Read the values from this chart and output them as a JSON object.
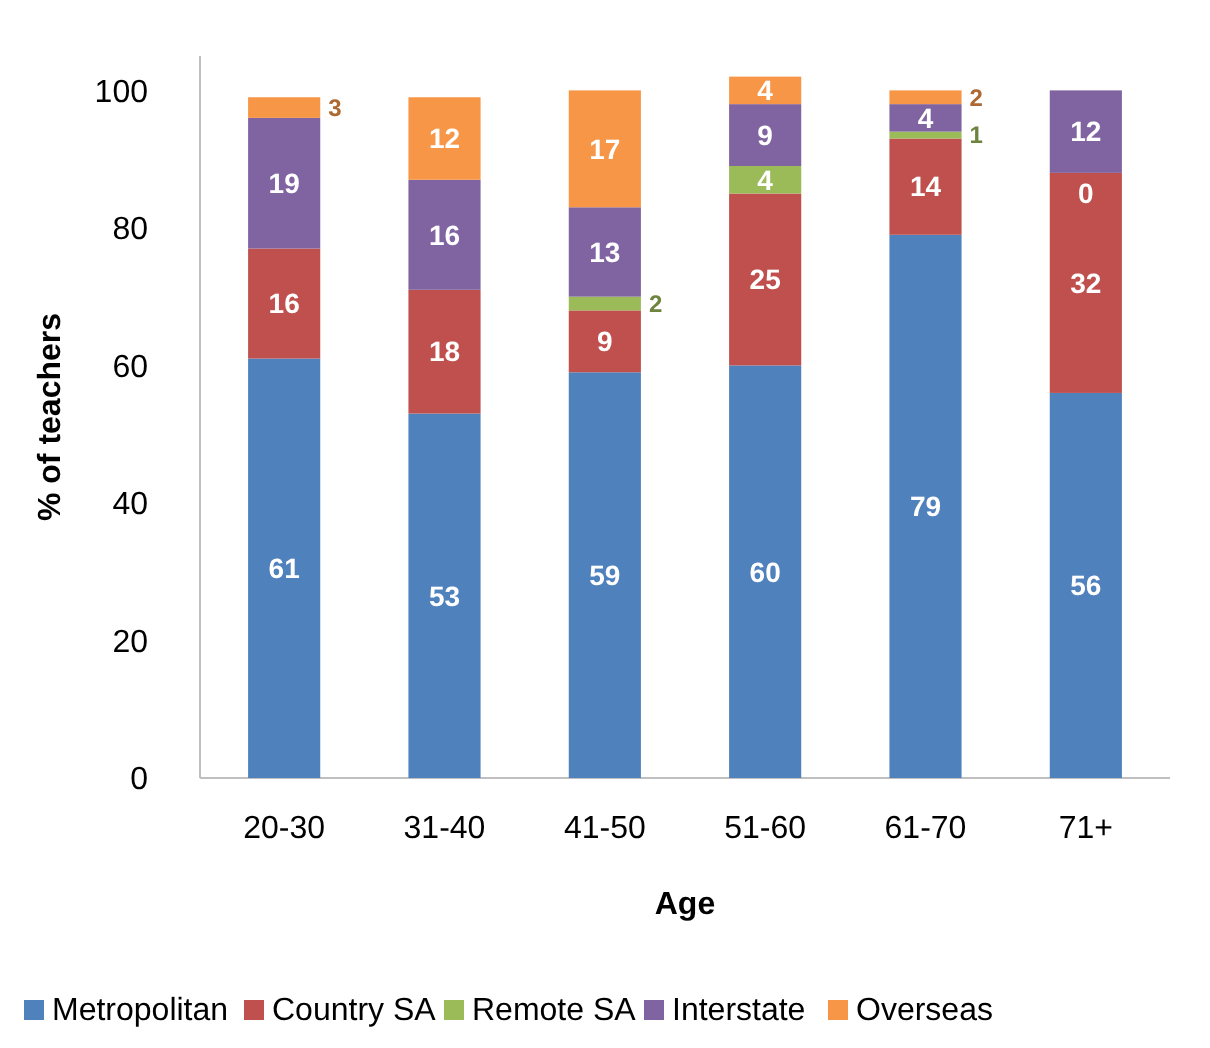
{
  "chart_data": {
    "type": "bar",
    "stacked": true,
    "xlabel": "Age",
    "ylabel": "% of teachers",
    "categories": [
      "20-30",
      "31-40",
      "41-50",
      "51-60",
      "61-70",
      "71+"
    ],
    "series": [
      {
        "name": "Metropolitan",
        "color": "#4f81bd",
        "values": [
          61,
          53,
          59,
          60,
          79,
          56
        ]
      },
      {
        "name": "Country SA",
        "color": "#c0504d",
        "values": [
          16,
          18,
          9,
          25,
          14,
          32
        ]
      },
      {
        "name": "Remote SA",
        "color": "#9bbb59",
        "values": [
          null,
          null,
          2,
          4,
          1,
          0
        ]
      },
      {
        "name": "Interstate",
        "color": "#8064a2",
        "values": [
          19,
          16,
          13,
          9,
          4,
          12
        ]
      },
      {
        "name": "Overseas",
        "color": "#f79646",
        "values": [
          3,
          12,
          17,
          4,
          2,
          null
        ]
      }
    ],
    "ylim": [
      0,
      105
    ],
    "yticks": [
      0,
      20,
      40,
      60,
      80,
      100
    ],
    "data_labels": true,
    "legend": "bottom"
  }
}
